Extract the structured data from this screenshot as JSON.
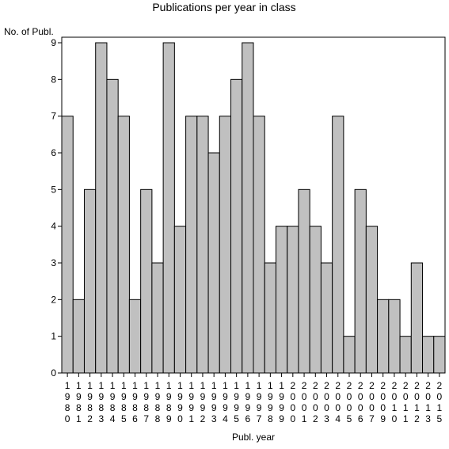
{
  "chart_data": {
    "type": "bar",
    "title": "Publications per year in class",
    "ylabel": "No. of Publ.",
    "xlabel": "Publ. year",
    "ylim": [
      0,
      9
    ],
    "yticks": [
      0,
      1,
      2,
      3,
      4,
      5,
      6,
      7,
      8,
      9
    ],
    "grid": false,
    "bar_color": "#c0c0c0",
    "categories": [
      "1980",
      "1981",
      "1982",
      "1983",
      "1984",
      "1985",
      "1986",
      "1987",
      "1988",
      "1989",
      "1990",
      "1991",
      "1992",
      "1993",
      "1994",
      "1995",
      "1996",
      "1997",
      "1998",
      "1999",
      "2000",
      "2001",
      "2002",
      "2003",
      "2004",
      "2005",
      "2006",
      "2007",
      "2009",
      "2010",
      "2011",
      "2012",
      "2013",
      "2015"
    ],
    "values": [
      7,
      2,
      5,
      9,
      8,
      7,
      2,
      5,
      3,
      9,
      4,
      7,
      7,
      6,
      7,
      8,
      9,
      7,
      3,
      4,
      4,
      5,
      4,
      3,
      7,
      1,
      5,
      4,
      2,
      2,
      1,
      3,
      1,
      1
    ]
  }
}
